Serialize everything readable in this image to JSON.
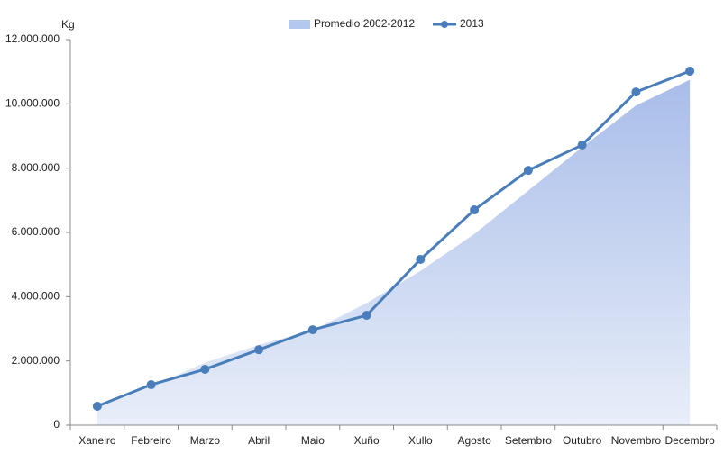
{
  "chart_data": {
    "type": "line",
    "y_label": "Kg",
    "categories": [
      "Xaneiro",
      "Febreiro",
      "Marzo",
      "Abril",
      "Maio",
      "Xuño",
      "Xullo",
      "Agosto",
      "Setembro",
      "Outubro",
      "Novembro",
      "Decembro"
    ],
    "series": [
      {
        "name": "Promedio 2002-2012",
        "kind": "area",
        "color": "#b4c7ec",
        "values": [
          550000,
          1200000,
          1950000,
          2500000,
          2950000,
          3800000,
          4800000,
          5950000,
          7300000,
          8650000,
          9950000,
          10750000
        ]
      },
      {
        "name": "2013",
        "kind": "line",
        "color": "#4a7ebb",
        "values": [
          590000,
          1260000,
          1740000,
          2350000,
          2970000,
          3420000,
          5160000,
          6700000,
          7930000,
          8720000,
          10370000,
          11020000
        ]
      }
    ],
    "ylim": [
      0,
      12000000
    ],
    "yticks": [
      0,
      {
        "value": 2000000,
        "label": "2.000.000"
      },
      {
        "value": 4000000,
        "label": "4.000.000"
      },
      {
        "value": 6000000,
        "label": "6.000.000"
      },
      {
        "value": 8000000,
        "label": "8.000.000"
      },
      {
        "value": 10000000,
        "label": "10.000.000"
      },
      {
        "value": 12000000,
        "label": "12.000.000"
      }
    ]
  }
}
